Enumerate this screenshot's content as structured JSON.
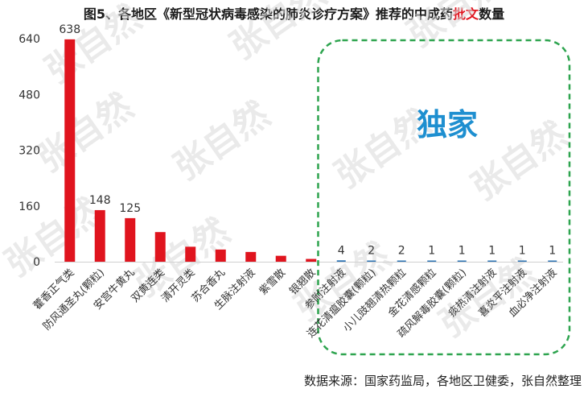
{
  "title": {
    "prefix": "图5、各地区《新型冠状病毒感染的肺炎诊疗方案》推荐的中成药",
    "highlight": "批文",
    "suffix": "数量"
  },
  "source": "数据来源：国家药监局，各地区卫健委，张自然整理",
  "annotation": "独家",
  "watermark": "张自然",
  "colors": {
    "bar_main": "#e0141e",
    "bar_exclusive": "#2e75b6",
    "box_border": "#2ea44f",
    "annotation": "#1e8fd0"
  },
  "chart_data": {
    "type": "bar",
    "categories": [
      "藿香正气类",
      "防风通圣丸(颗粒)",
      "安宫牛黄丸",
      "双黄连类",
      "清开灵类",
      "苏合香丸",
      "生脉注射液",
      "紫雪散",
      "银翘散",
      "参附注射液",
      "连花清瘟胶囊(颗粒)",
      "小儿豉翘清热颗粒",
      "金花清感颗粒",
      "疏风解毒胶囊(颗粒)",
      "痰热清注射液",
      "喜炎平注射液",
      "血必净注射液"
    ],
    "values": [
      638,
      148,
      125,
      85,
      43,
      35,
      28,
      17,
      8,
      4,
      2,
      2,
      1,
      1,
      1,
      1,
      1
    ],
    "data_labels": [
      "638",
      "148",
      "125",
      "",
      "",
      "",
      "",
      "",
      "",
      "4",
      "2",
      "2",
      "1",
      "1",
      "1",
      "1",
      "1"
    ],
    "exclusive_from_index": 9,
    "yticks": [
      "0",
      "160",
      "320",
      "480",
      "640"
    ],
    "ylim": [
      0,
      640
    ],
    "grid": false,
    "legend": "none"
  }
}
